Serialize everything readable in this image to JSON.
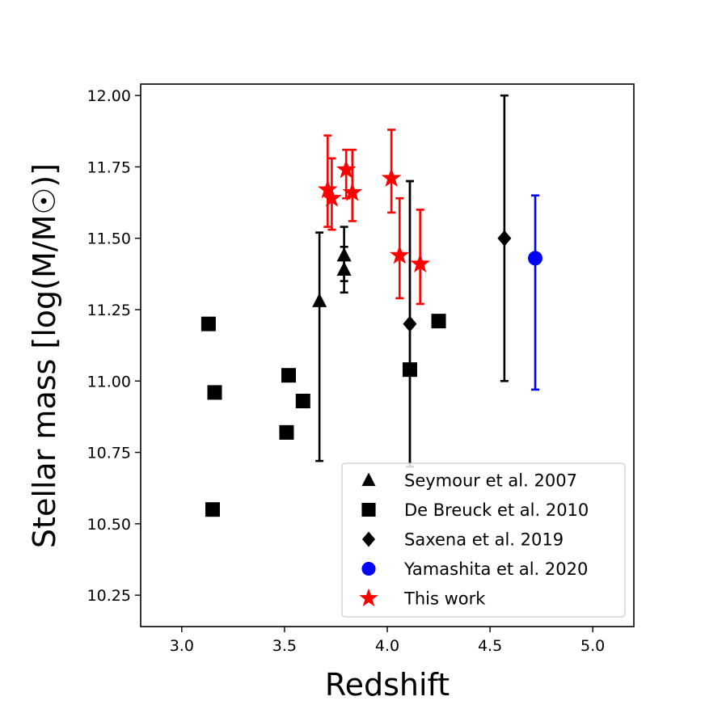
{
  "chart_data": {
    "type": "scatter",
    "title": "",
    "xlabel": "Redshift",
    "ylabel": "Stellar mass [log(M/M☉)]",
    "xlim": [
      2.8,
      5.2
    ],
    "ylim": [
      10.14,
      12.04
    ],
    "xticks": [
      3.0,
      3.5,
      4.0,
      4.5,
      5.0
    ],
    "xtick_labels": [
      "3.0",
      "3.5",
      "4.0",
      "4.5",
      "5.0"
    ],
    "yticks": [
      10.25,
      10.5,
      10.75,
      11.0,
      11.25,
      11.5,
      11.75,
      12.0
    ],
    "ytick_labels": [
      "10.25",
      "10.50",
      "10.75",
      "11.00",
      "11.25",
      "11.50",
      "11.75",
      "12.00"
    ],
    "grid": false,
    "legend_position": "bottom-right",
    "series": [
      {
        "name": "Seymour et al. 2007",
        "marker": "triangle",
        "color": "#000000",
        "points": [
          {
            "x": 3.67,
            "y": 11.28,
            "ylow": 10.72,
            "yhigh": 11.52
          },
          {
            "x": 3.79,
            "y": 11.44,
            "ylow": 11.35,
            "yhigh": 11.54
          },
          {
            "x": 3.79,
            "y": 11.39,
            "ylow": 11.31,
            "yhigh": 11.47
          }
        ]
      },
      {
        "name": "De Breuck et al. 2010",
        "marker": "square",
        "color": "#000000",
        "points": [
          {
            "x": 3.13,
            "y": 11.2
          },
          {
            "x": 3.16,
            "y": 10.96
          },
          {
            "x": 3.15,
            "y": 10.55
          },
          {
            "x": 3.51,
            "y": 10.82
          },
          {
            "x": 3.52,
            "y": 11.02
          },
          {
            "x": 3.59,
            "y": 10.93
          },
          {
            "x": 4.11,
            "y": 11.04,
            "ylow": 10.7,
            "yhigh": 11.7
          },
          {
            "x": 4.25,
            "y": 11.21
          }
        ]
      },
      {
        "name": "Saxena et al. 2019",
        "marker": "diamond",
        "color": "#000000",
        "points": [
          {
            "x": 4.11,
            "y": 11.2,
            "ylow": 10.7,
            "yhigh": 11.7
          },
          {
            "x": 4.57,
            "y": 11.5,
            "ylow": 11.0,
            "yhigh": 12.0
          }
        ]
      },
      {
        "name": "Yamashita et al. 2020",
        "marker": "circle",
        "color": "#0000ff",
        "points": [
          {
            "x": 4.72,
            "y": 11.43,
            "ylow": 10.97,
            "yhigh": 11.65
          }
        ]
      },
      {
        "name": "This work",
        "marker": "star",
        "color": "#ff0000",
        "points": [
          {
            "x": 3.71,
            "y": 11.67,
            "ylow": 11.54,
            "yhigh": 11.86
          },
          {
            "x": 3.73,
            "y": 11.64,
            "ylow": 11.53,
            "yhigh": 11.78
          },
          {
            "x": 3.8,
            "y": 11.74,
            "ylow": 11.64,
            "yhigh": 11.81
          },
          {
            "x": 3.83,
            "y": 11.66,
            "ylow": 11.56,
            "yhigh": 11.81
          },
          {
            "x": 4.02,
            "y": 11.71,
            "ylow": 11.59,
            "yhigh": 11.88
          },
          {
            "x": 4.06,
            "y": 11.44,
            "ylow": 11.29,
            "yhigh": 11.64
          },
          {
            "x": 4.16,
            "y": 11.41,
            "ylow": 11.27,
            "yhigh": 11.6
          }
        ]
      }
    ]
  }
}
